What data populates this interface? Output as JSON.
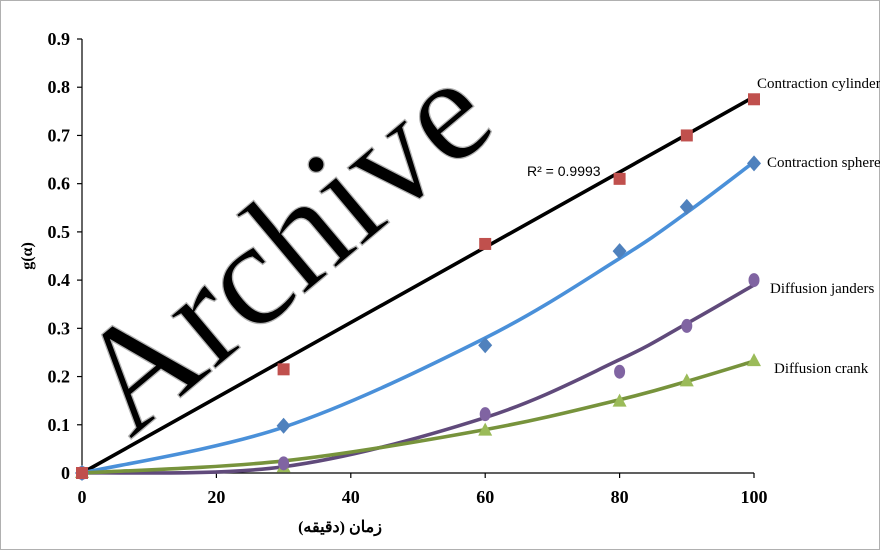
{
  "chart_data": {
    "type": "scatter",
    "title": "",
    "xlabel": "زمان (دقیقه)",
    "ylabel": "g(α)",
    "xlim": [
      0,
      100
    ],
    "ylim": [
      0,
      0.9
    ],
    "xticks": [
      "0",
      "20",
      "40",
      "60",
      "80",
      "100"
    ],
    "yticks": [
      "0",
      "0.1",
      "0.2",
      "0.3",
      "0.4",
      "0.5",
      "0.6",
      "0.7",
      "0.8",
      "0.9"
    ],
    "grid": false,
    "watermark": "Archive",
    "annotation": "R² = 0.9993",
    "series": [
      {
        "name": "Contraction cylinder",
        "marker": "square",
        "color": "#c0504d",
        "line_color": "#000000",
        "x": [
          0,
          30,
          60,
          80,
          90,
          100
        ],
        "y": [
          0.0,
          0.215,
          0.475,
          0.61,
          0.7,
          0.775
        ],
        "trend": {
          "type": "linear",
          "points": [
            [
              0,
              0.0
            ],
            [
              100,
              0.78
            ]
          ]
        }
      },
      {
        "name": "Contraction sphere",
        "marker": "diamond",
        "color": "#4f81bd",
        "line_color": "#4a90d9",
        "x": [
          0,
          30,
          60,
          80,
          90,
          100
        ],
        "y": [
          0.0,
          0.098,
          0.265,
          0.46,
          0.552,
          0.642
        ],
        "trend": {
          "type": "poly",
          "points": [
            [
              0,
              0.0
            ],
            [
              30,
              0.095
            ],
            [
              60,
              0.28
            ],
            [
              80,
              0.445
            ],
            [
              90,
              0.54
            ],
            [
              100,
              0.645
            ]
          ]
        }
      },
      {
        "name": "Diffusion janders",
        "marker": "circle",
        "color": "#8064a2",
        "line_color": "#604a7b",
        "x": [
          0,
          30,
          60,
          80,
          90,
          100
        ],
        "y": [
          0.0,
          0.02,
          0.122,
          0.21,
          0.305,
          0.4
        ],
        "trend": {
          "type": "poly",
          "points": [
            [
              0,
              0.0
            ],
            [
              30,
              0.013
            ],
            [
              60,
              0.115
            ],
            [
              80,
              0.235
            ],
            [
              90,
              0.31
            ],
            [
              100,
              0.39
            ]
          ]
        }
      },
      {
        "name": "Diffusion crank",
        "marker": "triangle",
        "color": "#9bbb59",
        "line_color": "#77933c",
        "x": [
          0,
          30,
          60,
          80,
          90,
          100
        ],
        "y": [
          0.0,
          0.012,
          0.088,
          0.148,
          0.19,
          0.232
        ],
        "trend": {
          "type": "poly",
          "points": [
            [
              0,
              0.0
            ],
            [
              30,
              0.025
            ],
            [
              60,
              0.09
            ],
            [
              80,
              0.152
            ],
            [
              90,
              0.19
            ],
            [
              100,
              0.232
            ]
          ]
        }
      }
    ]
  }
}
